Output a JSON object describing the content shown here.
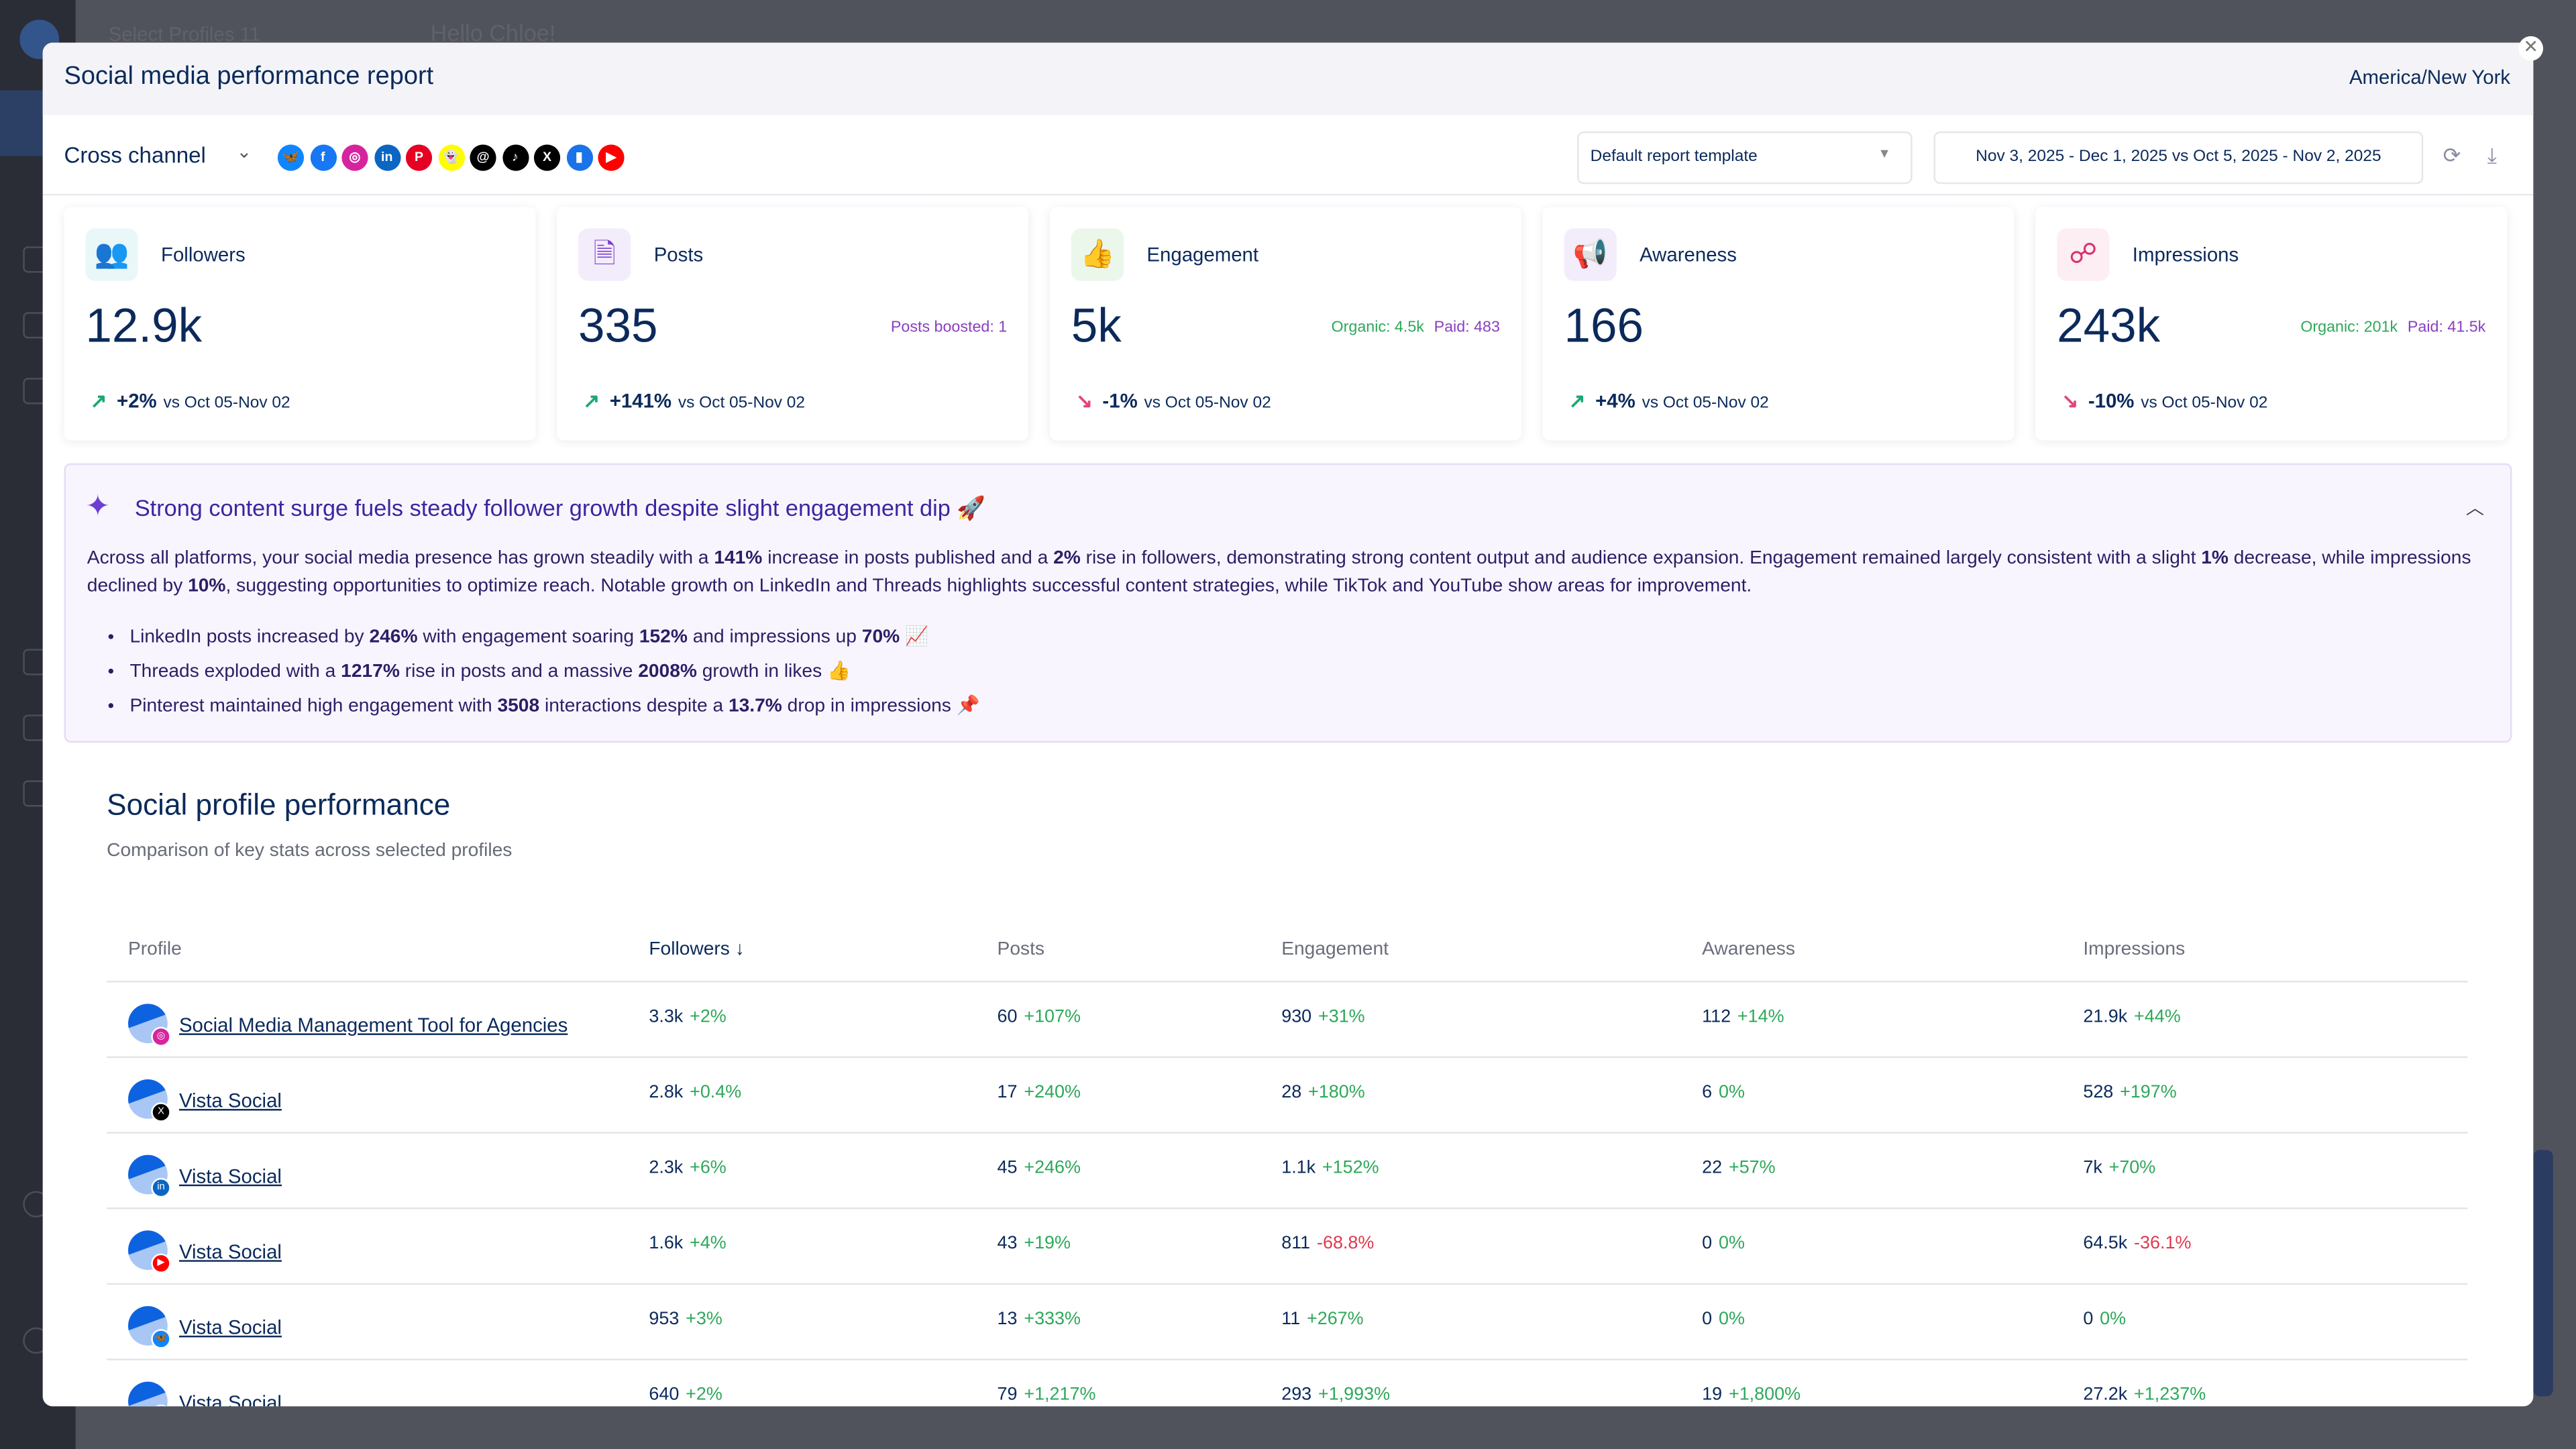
{
  "background": {
    "profile_selector": "Select Profiles  11",
    "greeting": "Hello Chloe!"
  },
  "header": {
    "title": "Social media performance report",
    "timezone": "America/New York",
    "close_icon": "close-icon"
  },
  "toolbar": {
    "channel_label": "Cross channel",
    "networks": [
      {
        "name": "bluesky",
        "glyph": "🦋",
        "color": "#1185fe"
      },
      {
        "name": "facebook",
        "glyph": "f",
        "color": "#1877f2"
      },
      {
        "name": "instagram",
        "glyph": "◎",
        "color": "#d6249f"
      },
      {
        "name": "linkedin",
        "glyph": "in",
        "color": "#0a66c2"
      },
      {
        "name": "pinterest",
        "glyph": "P",
        "color": "#e60023"
      },
      {
        "name": "snapchat",
        "glyph": "👻",
        "color": "#fffc00"
      },
      {
        "name": "threads",
        "glyph": "@",
        "color": "#000000"
      },
      {
        "name": "tiktok",
        "glyph": "♪",
        "color": "#000000"
      },
      {
        "name": "x",
        "glyph": "X",
        "color": "#000000"
      },
      {
        "name": "google-business",
        "glyph": "▮",
        "color": "#1a73e8"
      },
      {
        "name": "youtube",
        "glyph": "▶",
        "color": "#ff0000"
      }
    ],
    "template_select": "Default report template",
    "date_range": "Nov 3, 2025 - Dec 1, 2025 vs Oct 5, 2025 - Nov 2, 2025"
  },
  "cards": [
    {
      "label": "Followers",
      "value": "12.9k",
      "change": "+2%",
      "trend": "up",
      "vs": "vs Oct 05-Nov 02",
      "icon": "users-icon",
      "icon_color": "#2bb3c0",
      "icon_bg": "#e9f7f9"
    },
    {
      "label": "Posts",
      "value": "335",
      "change": "+141%",
      "trend": "up",
      "vs": "vs Oct 05-Nov 02",
      "extra": "Posts boosted: 1",
      "icon": "document-icon",
      "icon_color": "#7e3fcf",
      "icon_bg": "#f3edfb"
    },
    {
      "label": "Engagement",
      "value": "5k",
      "change": "-1%",
      "trend": "down",
      "vs": "vs Oct 05-Nov 02",
      "organic": "Organic: 4.5k",
      "paid": "Paid: 483",
      "icon": "thumbs-up-icon",
      "icon_color": "#2a9d2a",
      "icon_bg": "#ebf7ea"
    },
    {
      "label": "Awareness",
      "value": "166",
      "change": "+4%",
      "trend": "up",
      "vs": "vs Oct 05-Nov 02",
      "icon": "megaphone-icon",
      "icon_color": "#7e3fcf",
      "icon_bg": "#f3edfb"
    },
    {
      "label": "Impressions",
      "value": "243k",
      "change": "-10%",
      "trend": "down",
      "vs": "vs Oct 05-Nov 02",
      "organic": "Organic: 201k",
      "paid": "Paid: 41.5k",
      "icon": "share-nodes-icon",
      "icon_color": "#d6336c",
      "icon_bg": "#fdeef4"
    }
  ],
  "summary": {
    "title": "Strong content surge fuels steady follower growth despite slight engagement dip 🚀",
    "paragraph": [
      {
        "t": "Across all platforms, your social media presence has grown steadily with a "
      },
      {
        "t": "141%",
        "b": true
      },
      {
        "t": " increase in posts published and a "
      },
      {
        "t": "2%",
        "b": true
      },
      {
        "t": " rise in followers, demonstrating strong content output and audience expansion. Engagement remained largely consistent with a slight "
      },
      {
        "t": "1%",
        "b": true
      },
      {
        "t": " decrease, while impressions declined by "
      },
      {
        "t": "10%",
        "b": true
      },
      {
        "t": ", suggesting opportunities to optimize reach. Notable growth on LinkedIn and Threads highlights successful content strategies, while TikTok and YouTube show areas for improvement."
      }
    ],
    "bullets": [
      [
        {
          "t": "LinkedIn posts increased by "
        },
        {
          "t": "246%",
          "b": true
        },
        {
          "t": " with engagement soaring "
        },
        {
          "t": "152%",
          "b": true
        },
        {
          "t": " and impressions up "
        },
        {
          "t": "70%",
          "b": true
        },
        {
          "t": " 📈"
        }
      ],
      [
        {
          "t": "Threads exploded with a "
        },
        {
          "t": "1217%",
          "b": true
        },
        {
          "t": " rise in posts and a massive "
        },
        {
          "t": "2008%",
          "b": true
        },
        {
          "t": " growth in likes 👍"
        }
      ],
      [
        {
          "t": "Pinterest maintained high engagement with "
        },
        {
          "t": "3508",
          "b": true
        },
        {
          "t": " interactions despite a "
        },
        {
          "t": "13.7%",
          "b": true
        },
        {
          "t": " drop in impressions 📌"
        }
      ]
    ]
  },
  "profiles_section": {
    "title": "Social profile performance",
    "subtitle": "Comparison of key stats across selected profiles",
    "columns": [
      "Profile",
      "Followers",
      "Posts",
      "Engagement",
      "Awareness",
      "Impressions"
    ],
    "sorted_column": "Followers",
    "rows": [
      {
        "name": "Social Media Management Tool for Agencies",
        "network": "instagram",
        "badge_color": "#d6249f",
        "badge": "◎",
        "cells": [
          [
            "3.3k",
            "+2%"
          ],
          [
            "60",
            "+107%"
          ],
          [
            "930",
            "+31%"
          ],
          [
            "112",
            "+14%"
          ],
          [
            "21.9k",
            "+44%"
          ]
        ]
      },
      {
        "name": "Vista Social",
        "network": "x",
        "badge_color": "#000000",
        "badge": "X",
        "cells": [
          [
            "2.8k",
            "+0.4%"
          ],
          [
            "17",
            "+240%"
          ],
          [
            "28",
            "+180%"
          ],
          [
            "6",
            "0%"
          ],
          [
            "528",
            "+197%"
          ]
        ]
      },
      {
        "name": "Vista Social",
        "network": "linkedin",
        "badge_color": "#0a66c2",
        "badge": "in",
        "cells": [
          [
            "2.3k",
            "+6%"
          ],
          [
            "45",
            "+246%"
          ],
          [
            "1.1k",
            "+152%"
          ],
          [
            "22",
            "+57%"
          ],
          [
            "7k",
            "+70%"
          ]
        ]
      },
      {
        "name": "Vista Social",
        "network": "youtube",
        "badge_color": "#ff0000",
        "badge": "▶",
        "cells": [
          [
            "1.6k",
            "+4%"
          ],
          [
            "43",
            "+19%"
          ],
          [
            "811",
            "-68.8%"
          ],
          [
            "0",
            "0%"
          ],
          [
            "64.5k",
            "-36.1%"
          ]
        ]
      },
      {
        "name": "Vista Social",
        "network": "bluesky",
        "badge_color": "#1185fe",
        "badge": "🦋",
        "cells": [
          [
            "953",
            "+3%"
          ],
          [
            "13",
            "+333%"
          ],
          [
            "11",
            "+267%"
          ],
          [
            "0",
            "0%"
          ],
          [
            "0",
            "0%"
          ]
        ]
      },
      {
        "name": "Vista Social",
        "network": "threads",
        "badge_color": "#000000",
        "badge": "@",
        "cells": [
          [
            "640",
            "+2%"
          ],
          [
            "79",
            "+1,217%"
          ],
          [
            "293",
            "+1,993%"
          ],
          [
            "19",
            "+1,800%"
          ],
          [
            "27.2k",
            "+1,237%"
          ]
        ]
      }
    ]
  },
  "colors": {
    "brand_navy": "#0b2a5b",
    "positive": "#2ea85a",
    "negative": "#e0384f",
    "summary_bg": "#f9f5fe"
  }
}
